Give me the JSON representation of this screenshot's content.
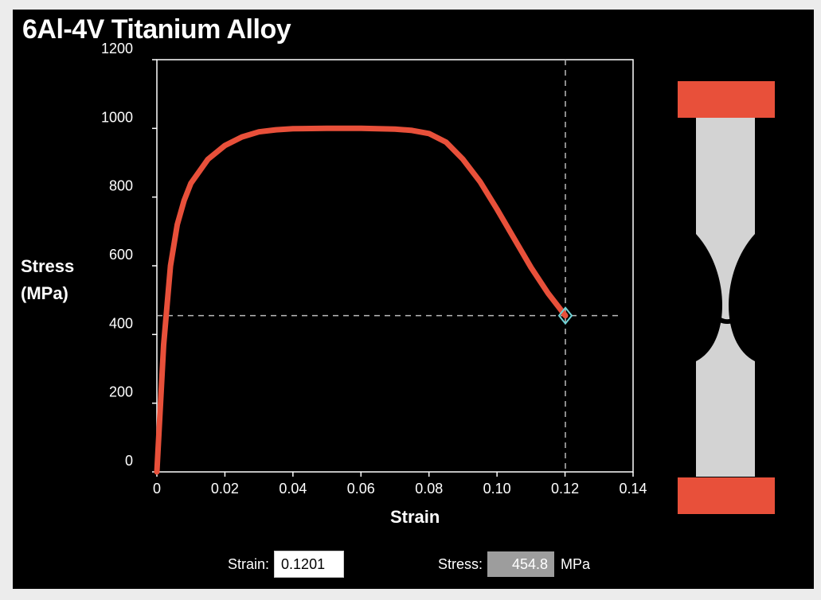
{
  "title": "6Al-4V Titanium Alloy",
  "y_axis_label_line1": "Stress",
  "y_axis_label_line2": "(MPa)",
  "x_axis_label": "Strain",
  "readout": {
    "strain_label": "Strain:",
    "strain_value": "0.1201",
    "stress_label": "Stress:",
    "stress_value": "454.8",
    "stress_unit": "MPa"
  },
  "colors": {
    "curve": "#e8503a",
    "grips": "#e8503a",
    "specimen": "#d3d3d3",
    "marker": "#6fd3d6",
    "background": "#000000"
  },
  "chart_data": {
    "type": "line",
    "title": "6Al-4V Titanium Alloy",
    "xlabel": "Strain",
    "ylabel": "Stress (MPa)",
    "xlim": [
      0,
      0.14
    ],
    "ylim": [
      0,
      1200
    ],
    "x_ticks": [
      "0",
      "0.02",
      "0.04",
      "0.06",
      "0.08",
      "0.10",
      "0.12",
      "0.14"
    ],
    "y_ticks": [
      "0",
      "200",
      "400",
      "600",
      "800",
      "1000",
      "1200"
    ],
    "grid": false,
    "series": [
      {
        "x": [
          0,
          0.002,
          0.004,
          0.006,
          0.008,
          0.01,
          0.015,
          0.02,
          0.025,
          0.03,
          0.035,
          0.04,
          0.05,
          0.06,
          0.07,
          0.075,
          0.08,
          0.085,
          0.09,
          0.095,
          0.1,
          0.105,
          0.11,
          0.115,
          0.1201
        ],
        "y": [
          0,
          370,
          600,
          720,
          790,
          840,
          910,
          950,
          975,
          990,
          996,
          999,
          1000,
          1000,
          998,
          994,
          985,
          960,
          910,
          845,
          765,
          680,
          595,
          520,
          454.8
        ]
      }
    ],
    "marker": {
      "x": 0.1201,
      "y": 454.8
    }
  }
}
